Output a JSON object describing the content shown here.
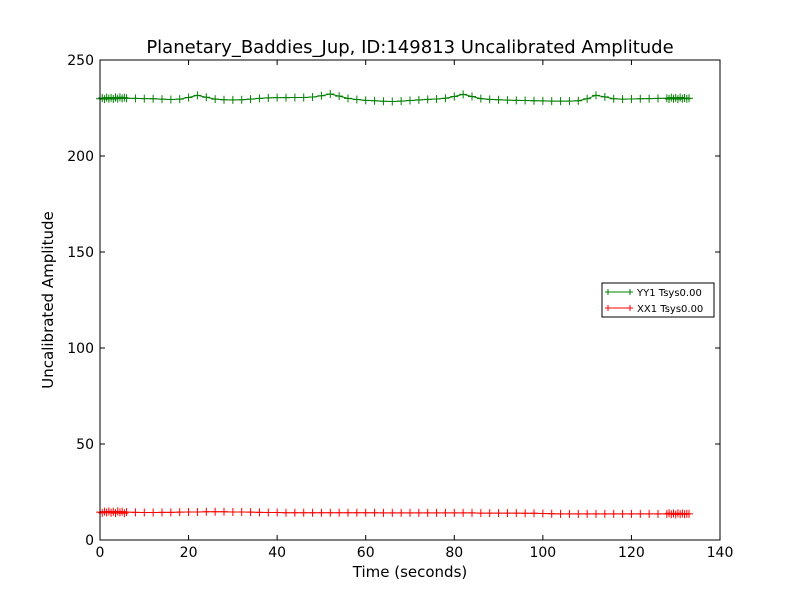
{
  "chart_data": {
    "type": "line",
    "title": "Planetary_Baddies_Jup, ID:149813 Uncalibrated Amplitude",
    "xlabel": "Time (seconds)",
    "ylabel": "Uncalibrated Amplitude",
    "xlim": [
      0,
      140
    ],
    "ylim": [
      0,
      250
    ],
    "xticks": [
      0,
      20,
      40,
      60,
      80,
      100,
      120,
      140
    ],
    "yticks": [
      0,
      50,
      100,
      150,
      200,
      250
    ],
    "grid": false,
    "legend_position": "center-right",
    "marker": "+",
    "series": [
      {
        "name": "YY1 Tsys0.00",
        "color": "#008000",
        "points": [
          [
            0.0,
            229.8
          ],
          [
            0.5,
            230.2
          ],
          [
            1.0,
            229.6
          ],
          [
            1.5,
            230.4
          ],
          [
            2.0,
            229.9
          ],
          [
            2.5,
            230.3
          ],
          [
            3.0,
            229.7
          ],
          [
            3.5,
            230.5
          ],
          [
            4.0,
            229.9
          ],
          [
            4.5,
            230.6
          ],
          [
            5.0,
            230.0
          ],
          [
            5.5,
            230.4
          ],
          [
            6.0,
            230.1
          ],
          [
            8.0,
            230.0
          ],
          [
            10.0,
            229.9
          ],
          [
            12.0,
            229.8
          ],
          [
            14.0,
            229.6
          ],
          [
            16.0,
            229.4
          ],
          [
            18.0,
            229.6
          ],
          [
            20.0,
            230.5
          ],
          [
            22.0,
            231.6
          ],
          [
            24.0,
            230.6
          ],
          [
            26.0,
            229.6
          ],
          [
            28.0,
            229.3
          ],
          [
            30.0,
            229.2
          ],
          [
            32.0,
            229.3
          ],
          [
            34.0,
            229.6
          ],
          [
            36.0,
            230.0
          ],
          [
            38.0,
            230.3
          ],
          [
            40.0,
            230.4
          ],
          [
            42.0,
            230.4
          ],
          [
            44.0,
            230.5
          ],
          [
            46.0,
            230.5
          ],
          [
            48.0,
            230.7
          ],
          [
            50.0,
            231.4
          ],
          [
            52.0,
            232.3
          ],
          [
            54.0,
            231.2
          ],
          [
            56.0,
            230.0
          ],
          [
            58.0,
            229.4
          ],
          [
            60.0,
            229.0
          ],
          [
            62.0,
            228.8
          ],
          [
            64.0,
            228.5
          ],
          [
            66.0,
            228.4
          ],
          [
            68.0,
            228.6
          ],
          [
            70.0,
            228.9
          ],
          [
            72.0,
            229.2
          ],
          [
            74.0,
            229.5
          ],
          [
            76.0,
            229.7
          ],
          [
            78.0,
            230.1
          ],
          [
            80.0,
            231.0
          ],
          [
            82.0,
            232.1
          ],
          [
            84.0,
            231.0
          ],
          [
            86.0,
            229.9
          ],
          [
            88.0,
            229.5
          ],
          [
            90.0,
            229.3
          ],
          [
            92.0,
            229.1
          ],
          [
            94.0,
            229.0
          ],
          [
            96.0,
            228.9
          ],
          [
            98.0,
            228.8
          ],
          [
            100.0,
            228.7
          ],
          [
            102.0,
            228.6
          ],
          [
            104.0,
            228.6
          ],
          [
            106.0,
            228.6
          ],
          [
            108.0,
            228.8
          ],
          [
            110.0,
            229.8
          ],
          [
            112.0,
            231.6
          ],
          [
            114.0,
            230.8
          ],
          [
            116.0,
            229.8
          ],
          [
            118.0,
            229.6
          ],
          [
            120.0,
            229.7
          ],
          [
            122.0,
            229.8
          ],
          [
            124.0,
            229.9
          ],
          [
            126.0,
            230.0
          ],
          [
            128.0,
            230.1
          ],
          [
            128.5,
            229.7
          ],
          [
            129.0,
            230.4
          ],
          [
            129.5,
            229.8
          ],
          [
            130.0,
            230.3
          ],
          [
            130.5,
            229.6
          ],
          [
            131.0,
            230.5
          ],
          [
            131.5,
            229.9
          ],
          [
            132.0,
            230.2
          ],
          [
            132.5,
            229.8
          ],
          [
            133.0,
            230.1
          ]
        ]
      },
      {
        "name": "XX1 Tsys0.00",
        "color": "#ff0000",
        "points": [
          [
            0.0,
            14.5
          ],
          [
            0.5,
            14.1
          ],
          [
            1.0,
            14.8
          ],
          [
            1.5,
            14.3
          ],
          [
            2.0,
            14.9
          ],
          [
            2.5,
            14.2
          ],
          [
            3.0,
            14.7
          ],
          [
            3.5,
            14.0
          ],
          [
            4.0,
            14.9
          ],
          [
            4.5,
            14.4
          ],
          [
            5.0,
            14.8
          ],
          [
            5.5,
            13.9
          ],
          [
            6.0,
            14.5
          ],
          [
            8.0,
            14.4
          ],
          [
            10.0,
            14.3
          ],
          [
            12.0,
            14.3
          ],
          [
            14.0,
            14.4
          ],
          [
            16.0,
            14.4
          ],
          [
            18.0,
            14.5
          ],
          [
            20.0,
            14.6
          ],
          [
            22.0,
            14.6
          ],
          [
            24.0,
            14.7
          ],
          [
            26.0,
            14.7
          ],
          [
            28.0,
            14.7
          ],
          [
            30.0,
            14.6
          ],
          [
            32.0,
            14.6
          ],
          [
            34.0,
            14.5
          ],
          [
            36.0,
            14.4
          ],
          [
            38.0,
            14.3
          ],
          [
            40.0,
            14.3
          ],
          [
            42.0,
            14.2
          ],
          [
            44.0,
            14.2
          ],
          [
            46.0,
            14.2
          ],
          [
            48.0,
            14.2
          ],
          [
            50.0,
            14.2
          ],
          [
            52.0,
            14.2
          ],
          [
            54.0,
            14.2
          ],
          [
            56.0,
            14.2
          ],
          [
            58.0,
            14.2
          ],
          [
            60.0,
            14.2
          ],
          [
            62.0,
            14.2
          ],
          [
            64.0,
            14.1
          ],
          [
            66.0,
            14.1
          ],
          [
            68.0,
            14.1
          ],
          [
            70.0,
            14.1
          ],
          [
            72.0,
            14.1
          ],
          [
            74.0,
            14.1
          ],
          [
            76.0,
            14.1
          ],
          [
            78.0,
            14.1
          ],
          [
            80.0,
            14.1
          ],
          [
            82.0,
            14.1
          ],
          [
            84.0,
            14.1
          ],
          [
            86.0,
            14.0
          ],
          [
            88.0,
            14.0
          ],
          [
            90.0,
            14.0
          ],
          [
            92.0,
            14.0
          ],
          [
            94.0,
            14.0
          ],
          [
            96.0,
            13.9
          ],
          [
            98.0,
            13.9
          ],
          [
            100.0,
            13.8
          ],
          [
            102.0,
            13.7
          ],
          [
            104.0,
            13.6
          ],
          [
            106.0,
            13.6
          ],
          [
            108.0,
            13.6
          ],
          [
            110.0,
            13.6
          ],
          [
            112.0,
            13.6
          ],
          [
            114.0,
            13.6
          ],
          [
            116.0,
            13.6
          ],
          [
            118.0,
            13.6
          ],
          [
            120.0,
            13.6
          ],
          [
            122.0,
            13.6
          ],
          [
            124.0,
            13.6
          ],
          [
            126.0,
            13.6
          ],
          [
            128.0,
            13.6
          ],
          [
            128.5,
            13.9
          ],
          [
            129.0,
            13.4
          ],
          [
            129.5,
            13.8
          ],
          [
            130.0,
            13.3
          ],
          [
            130.5,
            13.9
          ],
          [
            131.0,
            13.5
          ],
          [
            131.5,
            13.8
          ],
          [
            132.0,
            13.4
          ],
          [
            132.5,
            13.7
          ],
          [
            133.0,
            13.6
          ]
        ]
      }
    ]
  }
}
